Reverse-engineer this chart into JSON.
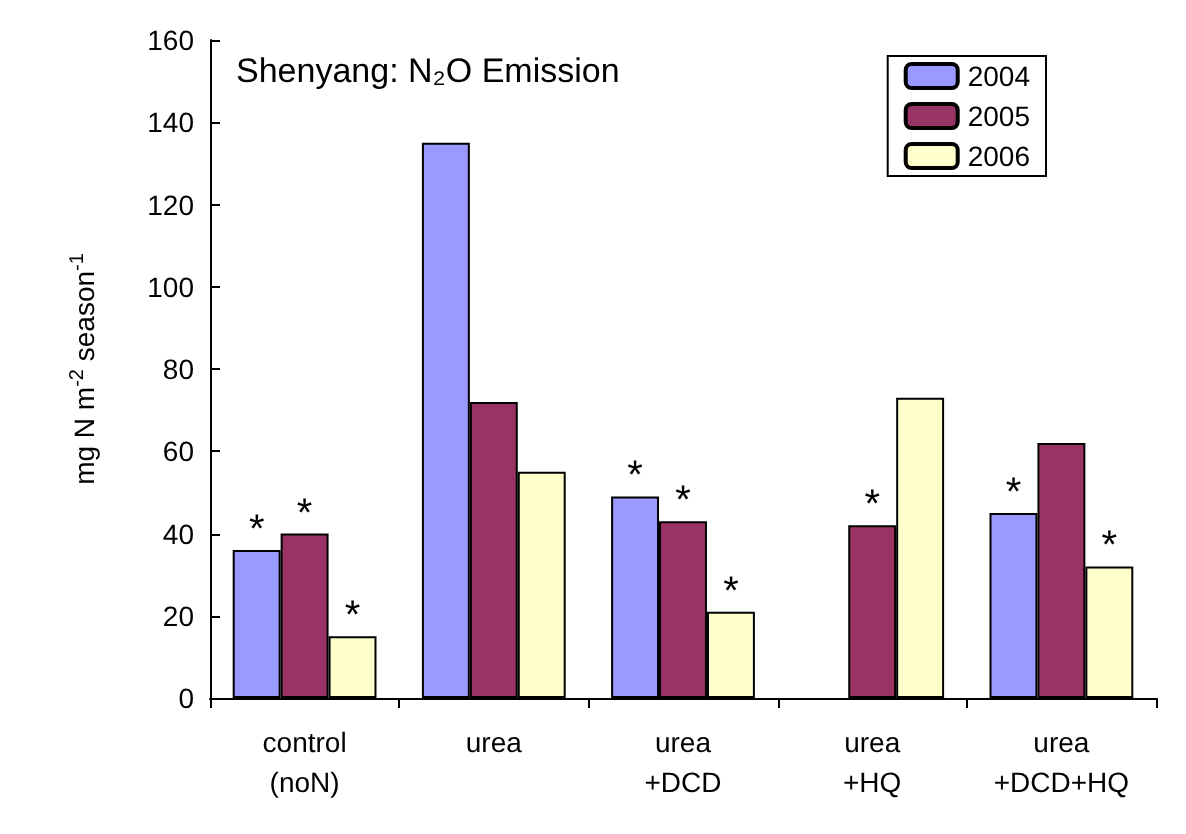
{
  "chart_data": {
    "type": "bar",
    "title": "Shenyang: N₂O Emission",
    "ylabel": "mg N m$^{-2}$ season$^{-1}$",
    "categories": [
      "control\n(noN)",
      "urea",
      "urea\n+DCD",
      "urea\n+HQ",
      "urea\n+DCD+HQ"
    ],
    "series": [
      {
        "name": "2004",
        "color": "#9999ff",
        "values": [
          36,
          135,
          49,
          null,
          45
        ],
        "value_labels": [
          "*",
          null,
          "*",
          null,
          "*"
        ]
      },
      {
        "name": "2005",
        "color": "#993366",
        "values": [
          40,
          72,
          43,
          42,
          62
        ],
        "value_labels": [
          "*",
          null,
          "*",
          "*",
          null
        ]
      },
      {
        "name": "2006",
        "color": "#ffffcc",
        "values": [
          15,
          55,
          21,
          73,
          32
        ],
        "value_labels": [
          "*",
          null,
          "*",
          null,
          "*"
        ]
      }
    ],
    "ylim": [
      0,
      160
    ],
    "yticks": [
      0,
      20,
      40,
      60,
      80,
      100,
      120,
      140,
      160
    ],
    "grid": false,
    "legend": "top right"
  }
}
